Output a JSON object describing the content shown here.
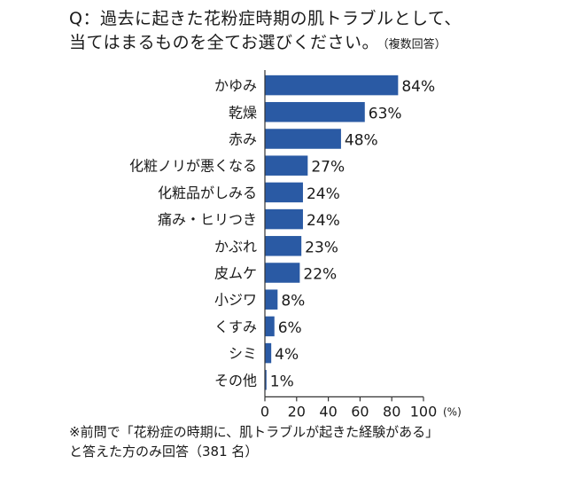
{
  "question": {
    "line1": "Q：過去に起きた花粉症時期の肌トラブルとして、",
    "line2": "当てはまるものを全てお選びください。",
    "note": "（複数回答）"
  },
  "footnote": {
    "line1": "※前問で「花粉症の時期に、肌トラブルが起きた経験がある」",
    "line2": "と答えた方のみ回答（381 名）"
  },
  "chart_data": {
    "type": "bar",
    "orientation": "horizontal",
    "categories": [
      "かゆみ",
      "乾燥",
      "赤み",
      "化粧ノリが悪くなる",
      "化粧品がしみる",
      "痛み・ヒリつき",
      "かぶれ",
      "皮ムケ",
      "小ジワ",
      "くすみ",
      "シミ",
      "その他"
    ],
    "values": [
      84,
      63,
      48,
      27,
      24,
      24,
      23,
      22,
      8,
      6,
      4,
      1
    ],
    "value_labels": [
      "84%",
      "63%",
      "48%",
      "27%",
      "24%",
      "24%",
      "23%",
      "22%",
      "8%",
      "6%",
      "4%",
      "1%"
    ],
    "xlim": [
      0,
      100
    ],
    "xticks": [
      0,
      20,
      40,
      60,
      80,
      100
    ],
    "tick_labels": [
      "0",
      "20",
      "40",
      "60",
      "80",
      "100"
    ],
    "unit_label": "(%)",
    "bar_color": "#2a5aa4",
    "grid": false
  }
}
